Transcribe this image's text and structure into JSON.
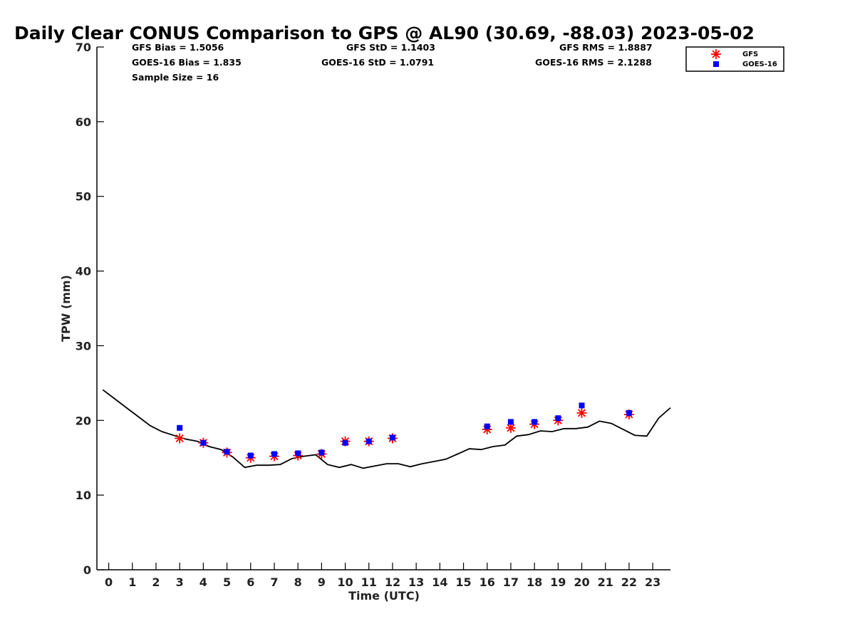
{
  "chart_data": {
    "type": "scatter",
    "title": "Daily Clear CONUS Comparison to GPS @ AL90 (30.69, -88.03) 2023-05-02",
    "xlabel": "Time (UTC)",
    "ylabel": "TPW (mm)",
    "xlim": [
      -0.5,
      23.75
    ],
    "ylim": [
      0,
      70
    ],
    "x_ticks": [
      "0",
      "1",
      "2",
      "3",
      "4",
      "5",
      "6",
      "7",
      "8",
      "9",
      "10",
      "11",
      "12",
      "13",
      "14",
      "15",
      "16",
      "17",
      "18",
      "19",
      "20",
      "21",
      "22",
      "23"
    ],
    "y_ticks": [
      "0",
      "10",
      "20",
      "30",
      "40",
      "50",
      "60",
      "70"
    ],
    "grid": false,
    "legend_position": "top-right outside plot",
    "stats": {
      "gfs_bias": "GFS Bias = 1.5056",
      "goes_bias": "GOES-16 Bias = 1.835",
      "sample_size": "Sample Size = 16",
      "gfs_std": "GFS StD = 1.1403",
      "goes_std": "GOES-16 StD = 1.0791",
      "gfs_rms": "GFS RMS = 1.8887",
      "goes_rms": "GOES-16 RMS = 2.1288"
    },
    "series": [
      {
        "name": "GPS",
        "kind": "line",
        "color": "#000000",
        "x": [
          -0.25,
          0.25,
          0.75,
          1.25,
          1.75,
          2.25,
          2.75,
          3.25,
          3.75,
          4.25,
          4.75,
          5.25,
          5.75,
          6.25,
          6.75,
          7.25,
          7.75,
          8.25,
          8.75,
          9.25,
          9.75,
          10.25,
          10.75,
          11.25,
          11.75,
          12.25,
          12.75,
          13.25,
          13.75,
          14.25,
          14.75,
          15.25,
          15.75,
          16.25,
          16.75,
          17.25,
          17.75,
          18.25,
          18.75,
          19.25,
          19.75,
          20.25,
          20.75,
          21.25,
          21.75,
          22.25,
          22.75,
          23.25,
          23.75
        ],
        "y": [
          24.1,
          22.9,
          21.7,
          20.5,
          19.3,
          18.5,
          18.0,
          17.5,
          17.2,
          16.5,
          16.1,
          15.1,
          13.7,
          14.0,
          14.0,
          14.1,
          14.9,
          15.2,
          15.4,
          14.1,
          13.7,
          14.1,
          13.6,
          13.9,
          14.2,
          14.2,
          13.8,
          14.2,
          14.5,
          14.8,
          15.5,
          16.2,
          16.1,
          16.5,
          16.7,
          17.9,
          18.1,
          18.6,
          18.5,
          18.9,
          18.9,
          19.1,
          19.9,
          19.6,
          18.8,
          18.0,
          17.9,
          20.3,
          21.7
        ]
      },
      {
        "name": "GFS",
        "kind": "marker",
        "marker": "asterisk",
        "color": "#ff0000",
        "x": [
          3,
          4,
          5,
          6,
          7,
          8,
          9,
          10,
          11,
          12,
          16,
          17,
          18,
          19,
          20,
          22
        ],
        "y": [
          17.6,
          17.0,
          15.7,
          15.0,
          15.2,
          15.3,
          15.5,
          17.2,
          17.2,
          17.6,
          18.8,
          19.0,
          19.5,
          20.0,
          21.0,
          20.8
        ]
      },
      {
        "name": "GOES-16",
        "kind": "marker",
        "marker": "square",
        "color": "#0000ff",
        "x": [
          3,
          4,
          5,
          6,
          7,
          8,
          9,
          10,
          11,
          12,
          16,
          17,
          18,
          19,
          20,
          22
        ],
        "y": [
          19.0,
          17.0,
          15.8,
          15.3,
          15.5,
          15.6,
          15.7,
          17.0,
          17.2,
          17.7,
          19.2,
          19.8,
          19.8,
          20.3,
          22.0,
          21.0
        ]
      }
    ]
  }
}
